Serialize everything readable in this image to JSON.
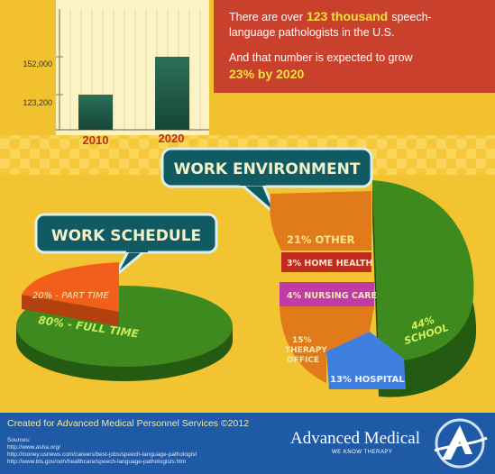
{
  "colors": {
    "background": "#f2c12e",
    "stat_box": "#c9412d",
    "highlight_text": "#f5e23a",
    "footer": "#1e5aa6",
    "bar": "#1f5a45",
    "callout": "#0f5a63"
  },
  "stats": {
    "line1_pre": "There are over",
    "line1_highlight": "123 thousand",
    "line1_post": "speech-",
    "line2": "language pathologists in the U.S.",
    "line3": "And that number is expected to grow",
    "line4_highlight": "23% by 2020"
  },
  "chart_data": [
    {
      "type": "bar",
      "categories": [
        "2010",
        "2020"
      ],
      "values": [
        123200,
        152000
      ],
      "ytick_labels": [
        "152,000",
        "123,200"
      ],
      "xlabel": "",
      "ylabel": ""
    },
    {
      "type": "pie",
      "title": "WORK SCHEDULE",
      "slices": [
        {
          "label": "80% - FULL TIME",
          "value": 80,
          "color": "#3f8a1f"
        },
        {
          "label": "20% - PART TIME",
          "value": 20,
          "color": "#f25f1c"
        }
      ]
    },
    {
      "type": "pie",
      "title": "WORK ENVIRONMENT",
      "slices": [
        {
          "label": "44% SCHOOL",
          "value": 44,
          "color": "#3f8a1f"
        },
        {
          "label": "13% HOSPITAL",
          "value": 13,
          "color": "#3f7fe0"
        },
        {
          "label": "15% THERAPY OFFICE",
          "value": 15,
          "color": "#e07a1a"
        },
        {
          "label": "4% NURSING CARE",
          "value": 4,
          "color": "#c03aa8"
        },
        {
          "label": "3% HOME HEALTH",
          "value": 3,
          "color": "#c22a1e"
        },
        {
          "label": "21% OTHER",
          "value": 21,
          "color": "#e07a1a"
        }
      ]
    }
  ],
  "footer": {
    "created": "Created for Advanced Medical Personnel Services ©2012",
    "sources_title": "Sources:",
    "sources": [
      "http://www.asha.org/",
      "http://money.usnews.com/careers/best-jobs/speech-language-pathologist",
      "http://www.bls.gov/ooh/healthcare/speech-language-pathologists.htm"
    ],
    "brand": "Advanced Medical",
    "tagline": "WE KNOW THERAPY"
  }
}
